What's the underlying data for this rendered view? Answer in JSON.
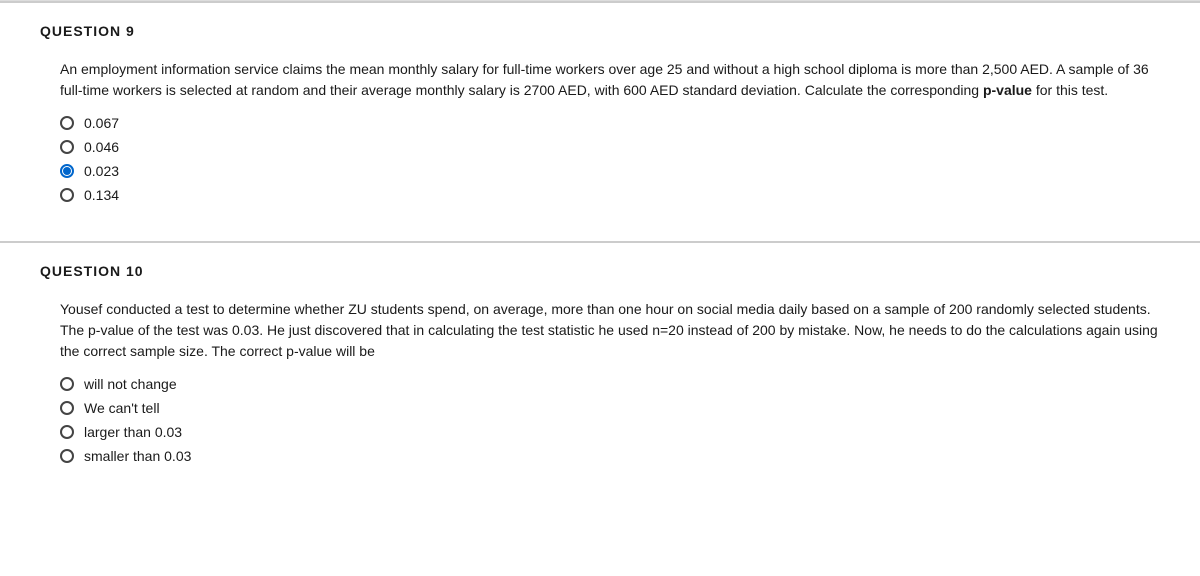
{
  "q9": {
    "header": "QUESTION 9",
    "text_part1": "An employment information service claims the mean monthly salary for full-time workers over age 25 and without a high school diploma is more than 2,500 AED. A sample of 36 full-time workers is selected at random and their average monthly salary is 2700 AED, with 600 AED standard deviation. Calculate the corresponding ",
    "text_bold": "p-value",
    "text_part2": " for this test.",
    "options": [
      {
        "label": "0.067",
        "selected": false
      },
      {
        "label": "0.046",
        "selected": false
      },
      {
        "label": "0.023",
        "selected": true
      },
      {
        "label": "0.134",
        "selected": false
      }
    ]
  },
  "q10": {
    "header": "QUESTION 10",
    "text": "Yousef conducted a test to determine whether ZU students spend, on average, more than one hour on social media daily based on a sample of 200 randomly selected students. The p-value of the test was 0.03. He just discovered that in calculating the test statistic he used n=20 instead of 200 by mistake. Now, he needs to do the calculations again using the correct sample size. The correct p-value will be",
    "options": [
      {
        "label": "will not change",
        "selected": false
      },
      {
        "label": "We can't tell",
        "selected": false
      },
      {
        "label": "larger than 0.03",
        "selected": false
      },
      {
        "label": "smaller than 0.03",
        "selected": false
      }
    ]
  },
  "colors": {
    "text": "#1a1a1a",
    "background": "#ffffff",
    "page_bg": "#f8f8f8",
    "border": "#cccccc",
    "radio_border": "#444444",
    "radio_selected": "#0066cc"
  }
}
